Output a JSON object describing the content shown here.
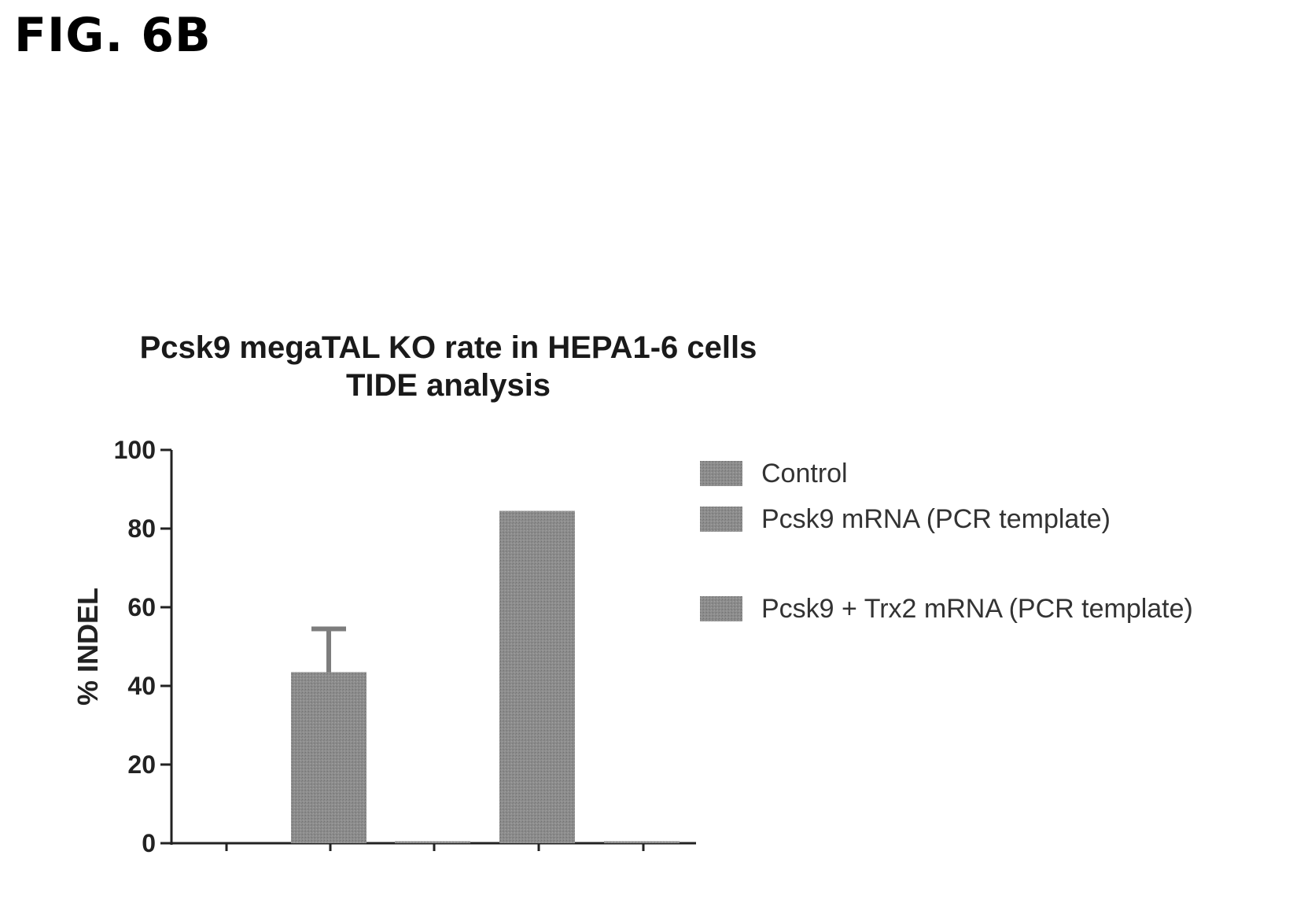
{
  "figure": {
    "label": "FIG. 6B"
  },
  "chart_data": {
    "type": "bar",
    "title": [
      "Pcsk9 megaTAL KO rate in HEPA1-6 cells",
      "TIDE analysis"
    ],
    "xlabel": "",
    "ylabel": "% INDEL",
    "ylim": [
      0,
      100
    ],
    "yticks": [
      0,
      20,
      40,
      60,
      80,
      100
    ],
    "grid": false,
    "legend_position": "right",
    "bar_color": "#8a8a8a",
    "series": [
      {
        "name": "Control",
        "values": [
          0
        ]
      },
      {
        "name": "Pcsk9 mRNA (PCR template)",
        "values": [
          43.5
        ]
      },
      {
        "name": "Pcsk9 + Trx2 mRNA (PCR template)",
        "values": [
          84.5
        ]
      }
    ],
    "bars": [
      {
        "value": 0,
        "error": null
      },
      {
        "value": 43.5,
        "error": 11
      },
      {
        "value": 0.5,
        "error": null
      },
      {
        "value": 84.5,
        "error": null
      },
      {
        "value": 0.5,
        "error": null
      }
    ]
  }
}
